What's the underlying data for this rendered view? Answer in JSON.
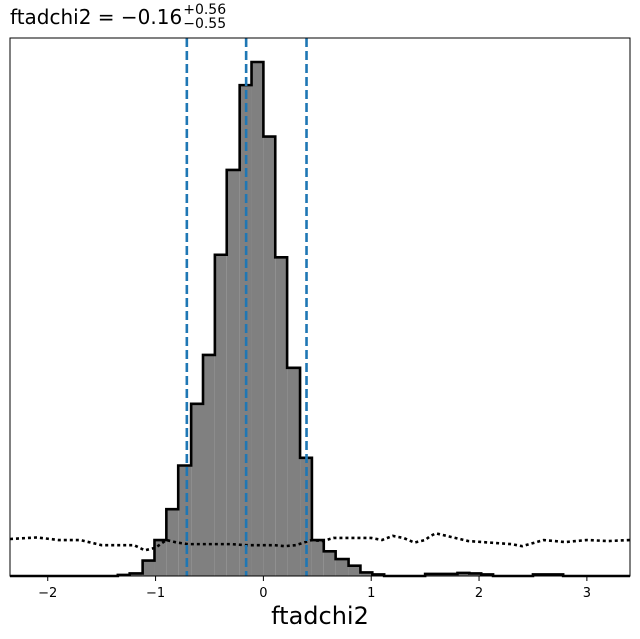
{
  "chart_data": {
    "type": "histogram",
    "title": {
      "name": "ftadchi2",
      "equals": " = ",
      "value": "−0.16",
      "upper": "+0.56",
      "lower": "−0.55"
    },
    "xlabel": "ftadchi2",
    "ylabel": "",
    "xlim": [
      -2.35,
      3.4
    ],
    "ylim": [
      0,
      1.0
    ],
    "xticks": [
      -2,
      -1,
      0,
      1,
      2,
      3
    ],
    "xtick_labels": [
      "−2",
      "−1",
      "0",
      "1",
      "2",
      "3"
    ],
    "grid": false,
    "bin_edges": [
      -2.35,
      -1.35,
      -1.24,
      -1.12,
      -1.01,
      -0.9,
      -0.79,
      -0.67,
      -0.56,
      -0.45,
      -0.34,
      -0.22,
      -0.11,
      0.0,
      0.11,
      0.22,
      0.34,
      0.45,
      0.56,
      0.67,
      0.79,
      0.9,
      1.01,
      1.12,
      1.24,
      1.5,
      1.8,
      1.91,
      2.02,
      2.13,
      2.24,
      2.5,
      2.78,
      2.89,
      3.0,
      3.4
    ],
    "counts": [
      0.0,
      0.002,
      0.005,
      0.03,
      0.07,
      0.13,
      0.215,
      0.335,
      0.43,
      0.625,
      0.79,
      0.955,
      1.0,
      0.855,
      0.62,
      0.405,
      0.23,
      0.07,
      0.048,
      0.033,
      0.02,
      0.007,
      0.003,
      0.0,
      0.0,
      0.004,
      0.006,
      0.005,
      0.003,
      0.0,
      0.0,
      0.003,
      0.0,
      0.0,
      0.0
    ],
    "quantile_lines": [
      -0.71,
      -0.16,
      0.4
    ],
    "prior_curve": {
      "style": "dotted",
      "x": [
        -2.35,
        -2.1,
        -1.9,
        -1.7,
        -1.6,
        -1.5,
        -1.3,
        -1.2,
        -1.1,
        -1.0,
        -0.9,
        -0.8,
        -0.7,
        -0.5,
        -0.3,
        -0.16,
        -0.05,
        0.1,
        0.2,
        0.3,
        0.45,
        0.55,
        0.65,
        0.8,
        1.0,
        1.1,
        1.2,
        1.3,
        1.4,
        1.5,
        1.55,
        1.6,
        1.7,
        1.9,
        2.1,
        2.3,
        2.4,
        2.6,
        2.8,
        3.0,
        3.2,
        3.4
      ],
      "y": [
        0.072,
        0.075,
        0.07,
        0.07,
        0.065,
        0.06,
        0.06,
        0.06,
        0.05,
        0.055,
        0.07,
        0.065,
        0.062,
        0.062,
        0.062,
        0.06,
        0.06,
        0.06,
        0.058,
        0.06,
        0.07,
        0.068,
        0.074,
        0.074,
        0.074,
        0.07,
        0.078,
        0.074,
        0.065,
        0.07,
        0.078,
        0.083,
        0.078,
        0.068,
        0.065,
        0.062,
        0.058,
        0.07,
        0.066,
        0.07,
        0.068,
        0.07
      ]
    },
    "colors": {
      "histogram_fill": "#808080",
      "histogram_edge": "#000000",
      "quantile_line": "#1f77b4",
      "prior_line": "#000000"
    }
  }
}
